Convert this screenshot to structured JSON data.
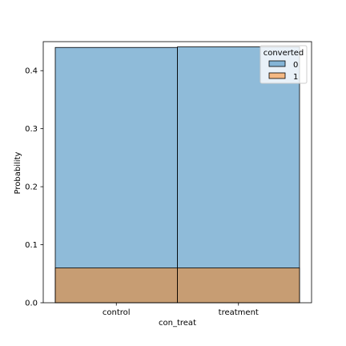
{
  "chart_data": {
    "type": "bar",
    "title": "",
    "xlabel": "con_treat",
    "ylabel": "Probability",
    "categories": [
      "control",
      "treatment"
    ],
    "ylim": [
      0,
      0.45
    ],
    "yticks": [
      0.0,
      0.1,
      0.2,
      0.3,
      0.4
    ],
    "ytick_labels": [
      "0.0",
      "0.1",
      "0.2",
      "0.3",
      "0.4"
    ],
    "grid": false,
    "legend": {
      "title": "converted",
      "placement": "top-right"
    },
    "series": [
      {
        "name": "0",
        "values": [
          0.44,
          0.441
        ],
        "color": "#1f77b4",
        "fill_opacity": 0.5
      },
      {
        "name": "1",
        "values": [
          0.06,
          0.06
        ],
        "color": "#ff7f0e",
        "fill_opacity": 0.5
      }
    ]
  }
}
